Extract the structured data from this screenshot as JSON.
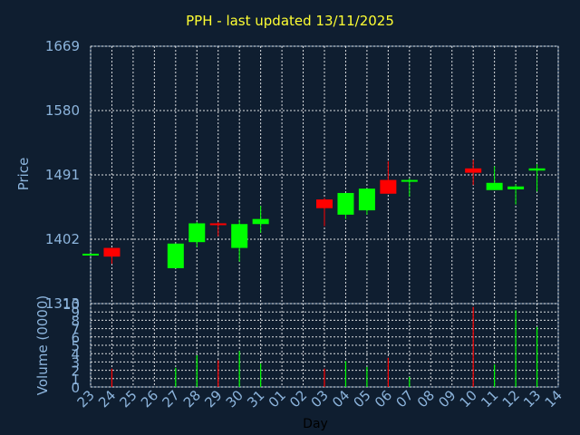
{
  "title": "PPH - last updated 13/11/2025",
  "colors": {
    "background": "#0f1e30",
    "title": "#ffff33",
    "axis_text": "#8cb4dc",
    "grid": "#ffffff",
    "up": "#00ff00",
    "down": "#ff0000",
    "xlabel": "#000000"
  },
  "chart_data": [
    {
      "type": "candlestick",
      "ylabel": "Price",
      "ylim": [
        1313,
        1669
      ],
      "yticks": [
        "1669",
        "1580",
        "1491",
        "1402",
        "1313"
      ],
      "ytick_values": [
        1669,
        1580,
        1491,
        1402,
        1313
      ],
      "grid": true,
      "categories": [
        "23",
        "24",
        "25",
        "26",
        "27",
        "28",
        "29",
        "30",
        "31",
        "01",
        "02",
        "03",
        "04",
        "05",
        "06",
        "07",
        "08",
        "09",
        "10",
        "11",
        "12",
        "13",
        "14"
      ],
      "candles": [
        {
          "day": "23",
          "open": 1382,
          "close": 1382,
          "high": 1382,
          "low": 1382
        },
        {
          "day": "24",
          "open": 1390,
          "close": 1378,
          "high": 1390,
          "low": 1368
        },
        {
          "day": "27",
          "open": 1362,
          "close": 1396,
          "high": 1396,
          "low": 1362
        },
        {
          "day": "28",
          "open": 1398,
          "close": 1424,
          "high": 1426,
          "low": 1391
        },
        {
          "day": "29",
          "open": 1424,
          "close": 1422,
          "high": 1426,
          "low": 1406
        },
        {
          "day": "30",
          "open": 1390,
          "close": 1423,
          "high": 1429,
          "low": 1371
        },
        {
          "day": "31",
          "open": 1423,
          "close": 1430,
          "high": 1448,
          "low": 1411
        },
        {
          "day": "03",
          "open": 1457,
          "close": 1445,
          "high": 1459,
          "low": 1420
        },
        {
          "day": "04",
          "open": 1436,
          "close": 1466,
          "high": 1466,
          "low": 1430
        },
        {
          "day": "05",
          "open": 1442,
          "close": 1472,
          "high": 1472,
          "low": 1436
        },
        {
          "day": "06",
          "open": 1484,
          "close": 1465,
          "high": 1510,
          "low": 1465
        },
        {
          "day": "07",
          "open": 1482,
          "close": 1484,
          "high": 1486,
          "low": 1461
        },
        {
          "day": "10",
          "open": 1500,
          "close": 1494,
          "high": 1512,
          "low": 1477
        },
        {
          "day": "11",
          "open": 1470,
          "close": 1480,
          "high": 1503,
          "low": 1470
        },
        {
          "day": "12",
          "open": 1471,
          "close": 1475,
          "high": 1478,
          "low": 1450
        },
        {
          "day": "13",
          "open": 1497,
          "close": 1500,
          "high": 1506,
          "low": 1468
        }
      ]
    },
    {
      "type": "bar",
      "ylabel": "Volume (0000)",
      "xlabel": "Day",
      "ylim": [
        0,
        10
      ],
      "yticks": [
        "10",
        "9",
        "8",
        "7",
        "6",
        "5",
        "4",
        "3",
        "2",
        "1",
        "0"
      ],
      "ytick_values": [
        10,
        9,
        8,
        7,
        6,
        5,
        4,
        3,
        2,
        1,
        0
      ],
      "grid": true,
      "volumes": [
        {
          "day": "24",
          "value": 2.2,
          "direction": "down"
        },
        {
          "day": "27",
          "value": 2.3,
          "direction": "up"
        },
        {
          "day": "28",
          "value": 3.8,
          "direction": "up"
        },
        {
          "day": "29",
          "value": 3.2,
          "direction": "down"
        },
        {
          "day": "30",
          "value": 4.3,
          "direction": "up"
        },
        {
          "day": "31",
          "value": 2.8,
          "direction": "up"
        },
        {
          "day": "03",
          "value": 2.2,
          "direction": "down"
        },
        {
          "day": "04",
          "value": 3.1,
          "direction": "up"
        },
        {
          "day": "05",
          "value": 2.4,
          "direction": "up"
        },
        {
          "day": "06",
          "value": 3.5,
          "direction": "down"
        },
        {
          "day": "07",
          "value": 1.2,
          "direction": "up"
        },
        {
          "day": "10",
          "value": 9.6,
          "direction": "down"
        },
        {
          "day": "11",
          "value": 2.7,
          "direction": "up"
        },
        {
          "day": "12",
          "value": 9.2,
          "direction": "up"
        },
        {
          "day": "13",
          "value": 7.2,
          "direction": "up"
        }
      ]
    }
  ]
}
